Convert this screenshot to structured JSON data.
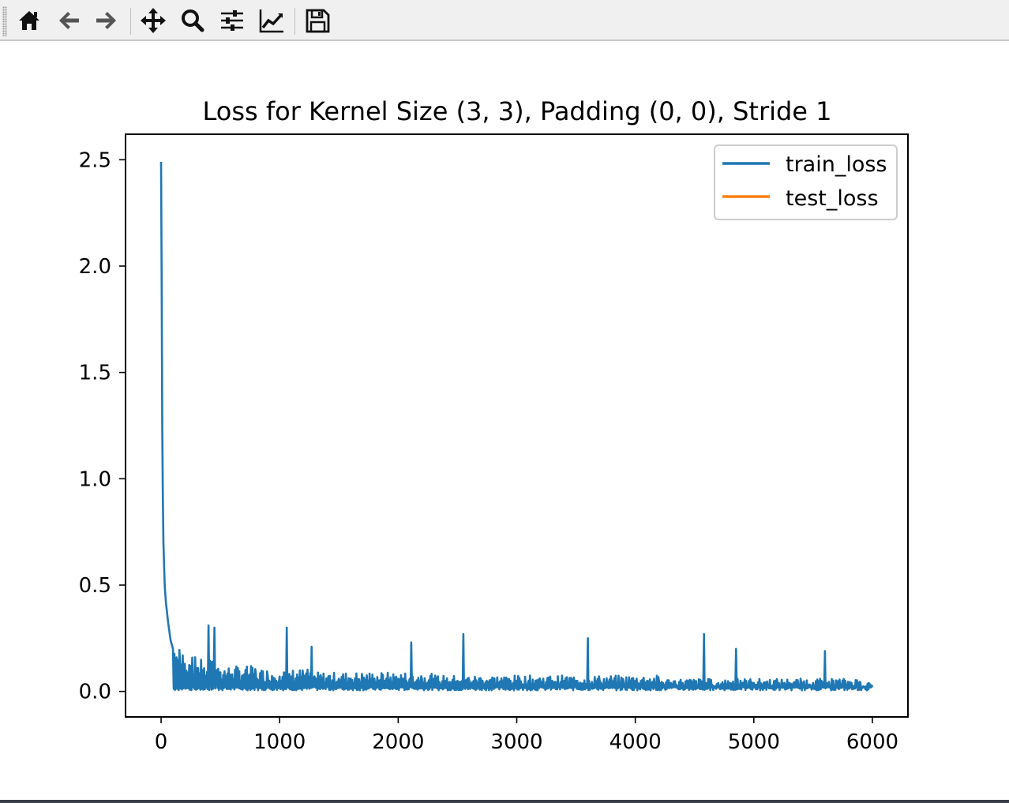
{
  "toolbar": {
    "buttons": [
      {
        "name": "home-button",
        "icon": "home-icon",
        "tooltip": "Reset original view"
      },
      {
        "name": "back-button",
        "icon": "arrow-left-icon",
        "tooltip": "Back to previous view"
      },
      {
        "name": "forward-button",
        "icon": "arrow-right-icon",
        "tooltip": "Forward to next view"
      },
      {
        "name": "pan-button",
        "icon": "move-icon",
        "tooltip": "Pan axes"
      },
      {
        "name": "zoom-button",
        "icon": "magnifier-icon",
        "tooltip": "Zoom to rectangle"
      },
      {
        "name": "subplots-button",
        "icon": "sliders-icon",
        "tooltip": "Configure subplots"
      },
      {
        "name": "axes-edit-button",
        "icon": "line-chart-icon",
        "tooltip": "Edit axis"
      },
      {
        "name": "save-button",
        "icon": "floppy-disk-icon",
        "tooltip": "Save the figure"
      }
    ]
  },
  "chart_data": {
    "type": "line",
    "title": "Loss for Kernel Size (3, 3), Padding (0, 0), Stride 1",
    "xlabel": "",
    "ylabel": "",
    "xlim": [
      -300,
      6300
    ],
    "ylim": [
      -0.12,
      2.62
    ],
    "xticks": [
      0,
      1000,
      2000,
      3000,
      4000,
      5000,
      6000
    ],
    "xtick_labels": [
      "0",
      "1000",
      "2000",
      "3000",
      "4000",
      "5000",
      "6000"
    ],
    "yticks": [
      0.0,
      0.5,
      1.0,
      1.5,
      2.0,
      2.5
    ],
    "ytick_labels": [
      "0.0",
      "0.5",
      "1.0",
      "1.5",
      "2.0",
      "2.5"
    ],
    "grid": false,
    "legend_position": "upper right",
    "colors": {
      "train_loss": "#1f77b4",
      "test_loss": "#ff7f0e"
    },
    "series": [
      {
        "name": "train_loss",
        "note_values": "approximate envelope read from plot",
        "x": [
          0,
          5,
          10,
          15,
          20,
          30,
          40,
          60,
          80,
          100,
          130,
          160,
          200,
          250,
          300,
          350,
          400,
          420,
          450,
          470,
          500,
          600,
          700,
          800,
          900,
          1000,
          1060,
          1070,
          1100,
          1200,
          1270,
          1300,
          1400,
          1500,
          1600,
          1700,
          1800,
          1900,
          2000,
          2100,
          2110,
          2200,
          2300,
          2400,
          2500,
          2550,
          2560,
          2600,
          2700,
          2800,
          2900,
          3000,
          3100,
          3200,
          3300,
          3400,
          3500,
          3600,
          3610,
          3700,
          3800,
          3900,
          4000,
          4100,
          4200,
          4300,
          4400,
          4500,
          4580,
          4590,
          4700,
          4800,
          4850,
          4900,
          5000,
          5100,
          5200,
          5300,
          5400,
          5500,
          5600,
          5610,
          5700,
          5800,
          5900,
          6000
        ],
        "values": [
          2.49,
          1.9,
          1.25,
          0.9,
          0.7,
          0.5,
          0.42,
          0.32,
          0.24,
          0.2,
          0.16,
          0.14,
          0.13,
          0.12,
          0.11,
          0.1,
          0.31,
          0.1,
          0.3,
          0.1,
          0.09,
          0.08,
          0.08,
          0.08,
          0.07,
          0.07,
          0.3,
          0.07,
          0.07,
          0.07,
          0.21,
          0.06,
          0.06,
          0.06,
          0.06,
          0.06,
          0.06,
          0.06,
          0.06,
          0.06,
          0.23,
          0.06,
          0.06,
          0.05,
          0.05,
          0.27,
          0.05,
          0.05,
          0.05,
          0.05,
          0.05,
          0.05,
          0.05,
          0.05,
          0.05,
          0.05,
          0.05,
          0.25,
          0.05,
          0.05,
          0.05,
          0.05,
          0.05,
          0.05,
          0.05,
          0.04,
          0.04,
          0.04,
          0.27,
          0.04,
          0.04,
          0.04,
          0.2,
          0.04,
          0.04,
          0.04,
          0.04,
          0.04,
          0.04,
          0.04,
          0.19,
          0.04,
          0.04,
          0.04,
          0.04,
          0.03
        ]
      },
      {
        "name": "test_loss",
        "x": [],
        "values": []
      }
    ]
  }
}
